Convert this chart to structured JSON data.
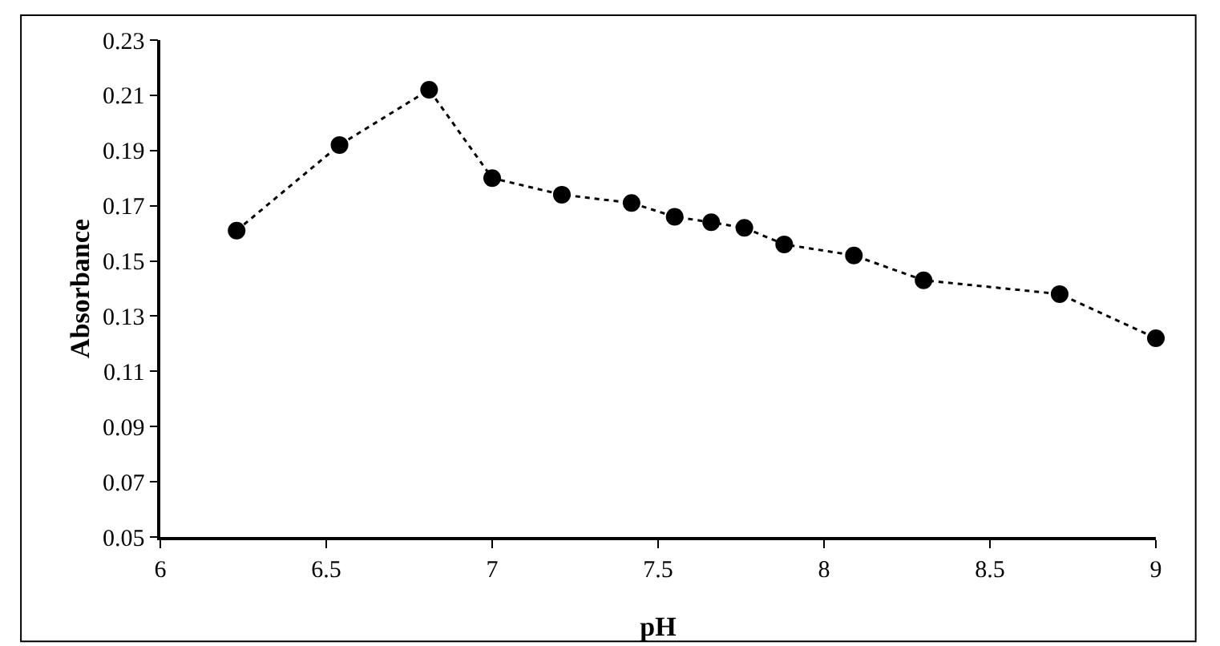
{
  "chart_data": {
    "type": "line",
    "xlabel": "pH",
    "ylabel": "Absorbance",
    "x": [
      6.23,
      6.54,
      6.81,
      7.0,
      7.21,
      7.42,
      7.55,
      7.66,
      7.76,
      7.88,
      8.09,
      8.3,
      8.71,
      9.0
    ],
    "values": [
      0.161,
      0.192,
      0.212,
      0.18,
      0.174,
      0.171,
      0.166,
      0.164,
      0.162,
      0.156,
      0.152,
      0.143,
      0.138,
      0.122
    ],
    "color": "#000000",
    "marker": "circle",
    "line_style": "dotted",
    "grid": false,
    "xlim": [
      6,
      9
    ],
    "xticks": [
      6,
      6.5,
      7,
      7.5,
      8,
      8.5,
      9
    ],
    "ylim": [
      0.05,
      0.23
    ],
    "yticks": [
      0.05,
      0.07,
      0.09,
      0.11,
      0.13,
      0.15,
      0.17,
      0.19,
      0.21,
      0.23
    ]
  }
}
